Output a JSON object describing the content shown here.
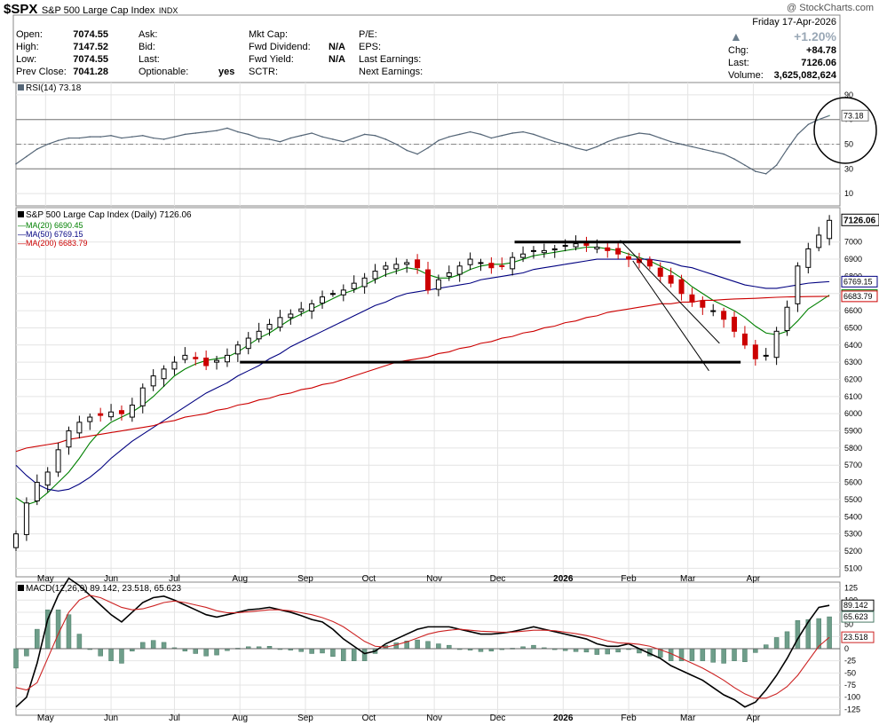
{
  "header": {
    "symbol": "$SPX",
    "name": "S&P 500 Large Cap Index",
    "exchange": "INDX",
    "watermark": "@ StockCharts.com",
    "date": "Friday  17-Apr-2026",
    "change_pct": "+1.20%",
    "chg_label": "Chg:",
    "chg_value": "+84.78",
    "last_label": "Last:",
    "last_value": "7126.06",
    "volume_label": "Volume:",
    "volume_value": "3,625,082,624"
  },
  "quote": [
    {
      "label": "Open:",
      "value": "7074.55"
    },
    {
      "label": "High:",
      "value": "7147.52"
    },
    {
      "label": "Low:",
      "value": "7074.55"
    },
    {
      "label": "Prev Close:",
      "value": "7041.28"
    }
  ],
  "quote2": [
    {
      "label": "Ask:",
      "value": ""
    },
    {
      "label": "Bid:",
      "value": ""
    },
    {
      "label": "Last:",
      "value": ""
    },
    {
      "label": "Optionable:",
      "value": "yes"
    }
  ],
  "quote3": [
    {
      "label": "Mkt Cap:",
      "value": ""
    },
    {
      "label": "Fwd Dividend:",
      "value": "N/A"
    },
    {
      "label": "Fwd Yield:",
      "value": "N/A"
    },
    {
      "label": "SCTR:",
      "value": ""
    }
  ],
  "quote4": [
    {
      "label": "P/E:",
      "value": ""
    },
    {
      "label": "EPS:",
      "value": ""
    },
    {
      "label": "Last Earnings:",
      "value": ""
    },
    {
      "label": "Next Earnings:",
      "value": ""
    }
  ],
  "colors": {
    "up": "#000000",
    "down": "#cc0000",
    "ma20": "#008000",
    "ma50": "#000080",
    "ma200": "#cc0000",
    "rsi_line": "#556677",
    "rsi_fill": "#6aa08a",
    "macd_hist": "#6e9e8a",
    "macd_line": "#000000",
    "signal_line": "#cc2222",
    "grid": "#e4e4e4"
  },
  "chart_data": [
    {
      "type": "line",
      "panel": "RSI",
      "title": "RSI(14) 73.18",
      "ylim": [
        0,
        100
      ],
      "ticks": [
        10,
        30,
        50,
        70,
        90
      ],
      "levels": [
        30,
        70
      ],
      "last_value_label": "73.18",
      "sample_step_days": 5,
      "values": [
        34,
        40,
        46,
        50,
        53,
        55,
        55,
        56,
        56,
        57,
        55,
        56,
        57,
        55,
        54,
        56,
        58,
        59,
        60,
        61,
        63,
        60,
        58,
        55,
        54,
        52,
        55,
        57,
        59,
        56,
        54,
        52,
        55,
        58,
        57,
        54,
        50,
        45,
        42,
        47,
        53,
        56,
        58,
        60,
        58,
        55,
        57,
        59,
        60,
        58,
        55,
        52,
        50,
        47,
        45,
        48,
        52,
        55,
        57,
        59,
        58,
        55,
        52,
        50,
        48,
        46,
        44,
        42,
        38,
        33,
        28,
        26,
        33,
        46,
        58,
        66,
        70,
        73.18
      ]
    },
    {
      "type": "candlestick",
      "panel": "Price",
      "title": "S&P 500 Large Cap Index (Daily) 7126.06",
      "ylim": [
        5050,
        7200
      ],
      "ticks": [
        5100,
        5200,
        5300,
        5400,
        5500,
        5600,
        5700,
        5800,
        5900,
        6000,
        6100,
        6200,
        6300,
        6400,
        6500,
        6600,
        6700,
        6800,
        6900,
        7000
      ],
      "x_labels": [
        "May",
        "Jun",
        "Jul",
        "Aug",
        "Sep",
        "Oct",
        "Nov",
        "Dec",
        "2026",
        "Feb",
        "Mar",
        "Apr"
      ],
      "x_label_days": [
        14,
        45,
        75,
        106,
        137,
        167,
        198,
        228,
        259,
        290,
        318,
        349
      ],
      "last_price_label": "7126.06",
      "sample_step_days": 5,
      "close": [
        5300,
        5480,
        5600,
        5660,
        5790,
        5900,
        5950,
        5980,
        5990,
        6010,
        6000,
        6050,
        6150,
        6220,
        6260,
        6300,
        6340,
        6320,
        6280,
        6310,
        6340,
        6400,
        6440,
        6480,
        6520,
        6560,
        6580,
        6610,
        6640,
        6680,
        6700,
        6720,
        6760,
        6790,
        6830,
        6860,
        6870,
        6880,
        6850,
        6720,
        6780,
        6820,
        6860,
        6900,
        6880,
        6850,
        6860,
        6910,
        6930,
        6950,
        6950,
        6960,
        6980,
        6990,
        6980,
        6970,
        6950,
        6930,
        6900,
        6880,
        6860,
        6800,
        6760,
        6700,
        6650,
        6620,
        6600,
        6550,
        6480,
        6400,
        6320,
        6340,
        6480,
        6620,
        6860,
        6960,
        7040,
        7126.06
      ],
      "trendlines": [
        {
          "label": "resistance",
          "from": [
            236,
            7000
          ],
          "to": [
            343,
            7000
          ]
        },
        {
          "label": "support",
          "from": [
            106,
            6300
          ],
          "to": [
            343,
            6300
          ]
        },
        {
          "label": "channel-upper",
          "from": [
            286,
            7010
          ],
          "to": [
            333,
            6410
          ]
        },
        {
          "label": "channel-lower",
          "from": [
            292,
            6890
          ],
          "to": [
            328,
            6250
          ]
        }
      ],
      "series": [
        {
          "name": "MA(20) 6690.45",
          "label": "6690.45",
          "values": [
            5510,
            5470,
            5490,
            5540,
            5600,
            5660,
            5740,
            5830,
            5900,
            5950,
            5980,
            6010,
            6050,
            6100,
            6160,
            6220,
            6260,
            6290,
            6310,
            6320,
            6330,
            6360,
            6400,
            6440,
            6470,
            6510,
            6550,
            6580,
            6610,
            6640,
            6670,
            6700,
            6720,
            6750,
            6780,
            6810,
            6830,
            6850,
            6840,
            6810,
            6790,
            6790,
            6810,
            6840,
            6860,
            6870,
            6870,
            6880,
            6900,
            6920,
            6930,
            6940,
            6950,
            6960,
            6970,
            6970,
            6960,
            6950,
            6930,
            6910,
            6890,
            6860,
            6830,
            6790,
            6740,
            6700,
            6660,
            6630,
            6600,
            6560,
            6510,
            6470,
            6460,
            6480,
            6540,
            6610,
            6650,
            6690.45
          ]
        },
        {
          "name": "MA(50) 6769.15",
          "label": "6769.15",
          "values": [
            5700,
            5640,
            5590,
            5560,
            5550,
            5560,
            5590,
            5630,
            5680,
            5740,
            5790,
            5840,
            5880,
            5920,
            5960,
            6000,
            6040,
            6080,
            6120,
            6150,
            6180,
            6220,
            6250,
            6280,
            6320,
            6350,
            6390,
            6420,
            6450,
            6480,
            6510,
            6540,
            6570,
            6600,
            6630,
            6650,
            6680,
            6700,
            6710,
            6720,
            6730,
            6740,
            6750,
            6760,
            6780,
            6790,
            6800,
            6810,
            6820,
            6840,
            6850,
            6860,
            6870,
            6880,
            6890,
            6900,
            6900,
            6900,
            6900,
            6900,
            6900,
            6890,
            6880,
            6860,
            6850,
            6830,
            6810,
            6790,
            6770,
            6750,
            6740,
            6730,
            6730,
            6740,
            6750,
            6760,
            6765,
            6769.15
          ]
        },
        {
          "name": "MA(200) 6683.79",
          "label": "6683.79",
          "values": [
            5780,
            5800,
            5810,
            5820,
            5830,
            5850,
            5860,
            5870,
            5880,
            5890,
            5900,
            5910,
            5920,
            5930,
            5950,
            5960,
            5980,
            5990,
            6000,
            6020,
            6030,
            6050,
            6060,
            6080,
            6090,
            6110,
            6120,
            6140,
            6150,
            6170,
            6180,
            6200,
            6220,
            6240,
            6260,
            6280,
            6300,
            6310,
            6320,
            6330,
            6350,
            6360,
            6380,
            6390,
            6410,
            6420,
            6440,
            6450,
            6470,
            6480,
            6500,
            6510,
            6530,
            6540,
            6560,
            6570,
            6590,
            6600,
            6610,
            6620,
            6630,
            6640,
            6640,
            6650,
            6650,
            6660,
            6660,
            6665,
            6668,
            6670,
            6672,
            6675,
            6678,
            6680,
            6681,
            6682,
            6683,
            6683.79
          ]
        }
      ]
    },
    {
      "type": "line",
      "panel": "MACD",
      "title": "MACD(12,26,9) 89.142, 23.518, 65.623",
      "ylim": [
        -137,
        137
      ],
      "ticks": [
        -125,
        -100,
        -75,
        -50,
        -25,
        0,
        25,
        50,
        75,
        100,
        125
      ],
      "sample_step_days": 5,
      "series": [
        {
          "name": "MACD",
          "label": "89.142",
          "values": [
            -120,
            -100,
            -30,
            60,
            110,
            145,
            130,
            110,
            90,
            70,
            55,
            75,
            95,
            105,
            108,
            100,
            90,
            80,
            70,
            65,
            70,
            75,
            80,
            82,
            85,
            80,
            75,
            68,
            60,
            55,
            40,
            20,
            5,
            -10,
            -5,
            10,
            20,
            30,
            40,
            45,
            45,
            45,
            40,
            35,
            30,
            30,
            32,
            35,
            40,
            45,
            40,
            35,
            30,
            25,
            20,
            10,
            5,
            5,
            10,
            0,
            -10,
            -20,
            -35,
            -45,
            -55,
            -65,
            -80,
            -95,
            -105,
            -120,
            -110,
            -85,
            -55,
            -20,
            20,
            55,
            85,
            89.142
          ]
        },
        {
          "name": "Signal",
          "label": "23.518",
          "values": [
            -80,
            -85,
            -70,
            -20,
            30,
            75,
            100,
            110,
            105,
            95,
            85,
            80,
            82,
            88,
            95,
            98,
            95,
            90,
            85,
            78,
            74,
            74,
            76,
            78,
            80,
            80,
            78,
            74,
            70,
            64,
            56,
            45,
            30,
            15,
            5,
            3,
            8,
            14,
            22,
            30,
            35,
            38,
            40,
            38,
            36,
            35,
            34,
            34,
            36,
            38,
            38,
            37,
            34,
            31,
            27,
            22,
            16,
            12,
            11,
            9,
            5,
            -2,
            -10,
            -20,
            -30,
            -40,
            -52,
            -65,
            -80,
            -93,
            -102,
            -102,
            -93,
            -78,
            -55,
            -25,
            5,
            23.518
          ]
        },
        {
          "name": "Histogram",
          "label": "65.623",
          "values": [
            -40,
            -15,
            40,
            80,
            80,
            70,
            30,
            0,
            -15,
            -25,
            -30,
            -5,
            13,
            17,
            13,
            2,
            -5,
            -10,
            -15,
            -13,
            -4,
            1,
            4,
            4,
            5,
            0,
            -3,
            -6,
            -10,
            -9,
            -16,
            -25,
            -25,
            -25,
            -10,
            7,
            12,
            16,
            18,
            15,
            10,
            7,
            0,
            -3,
            -6,
            -5,
            -2,
            1,
            4,
            7,
            2,
            -2,
            -4,
            -6,
            -7,
            -12,
            -11,
            -7,
            -1,
            -9,
            -15,
            -18,
            -25,
            -25,
            -25,
            -25,
            -28,
            -30,
            -25,
            -27,
            -8,
            8,
            23,
            35,
            58,
            60,
            62,
            65.623
          ]
        }
      ]
    }
  ]
}
